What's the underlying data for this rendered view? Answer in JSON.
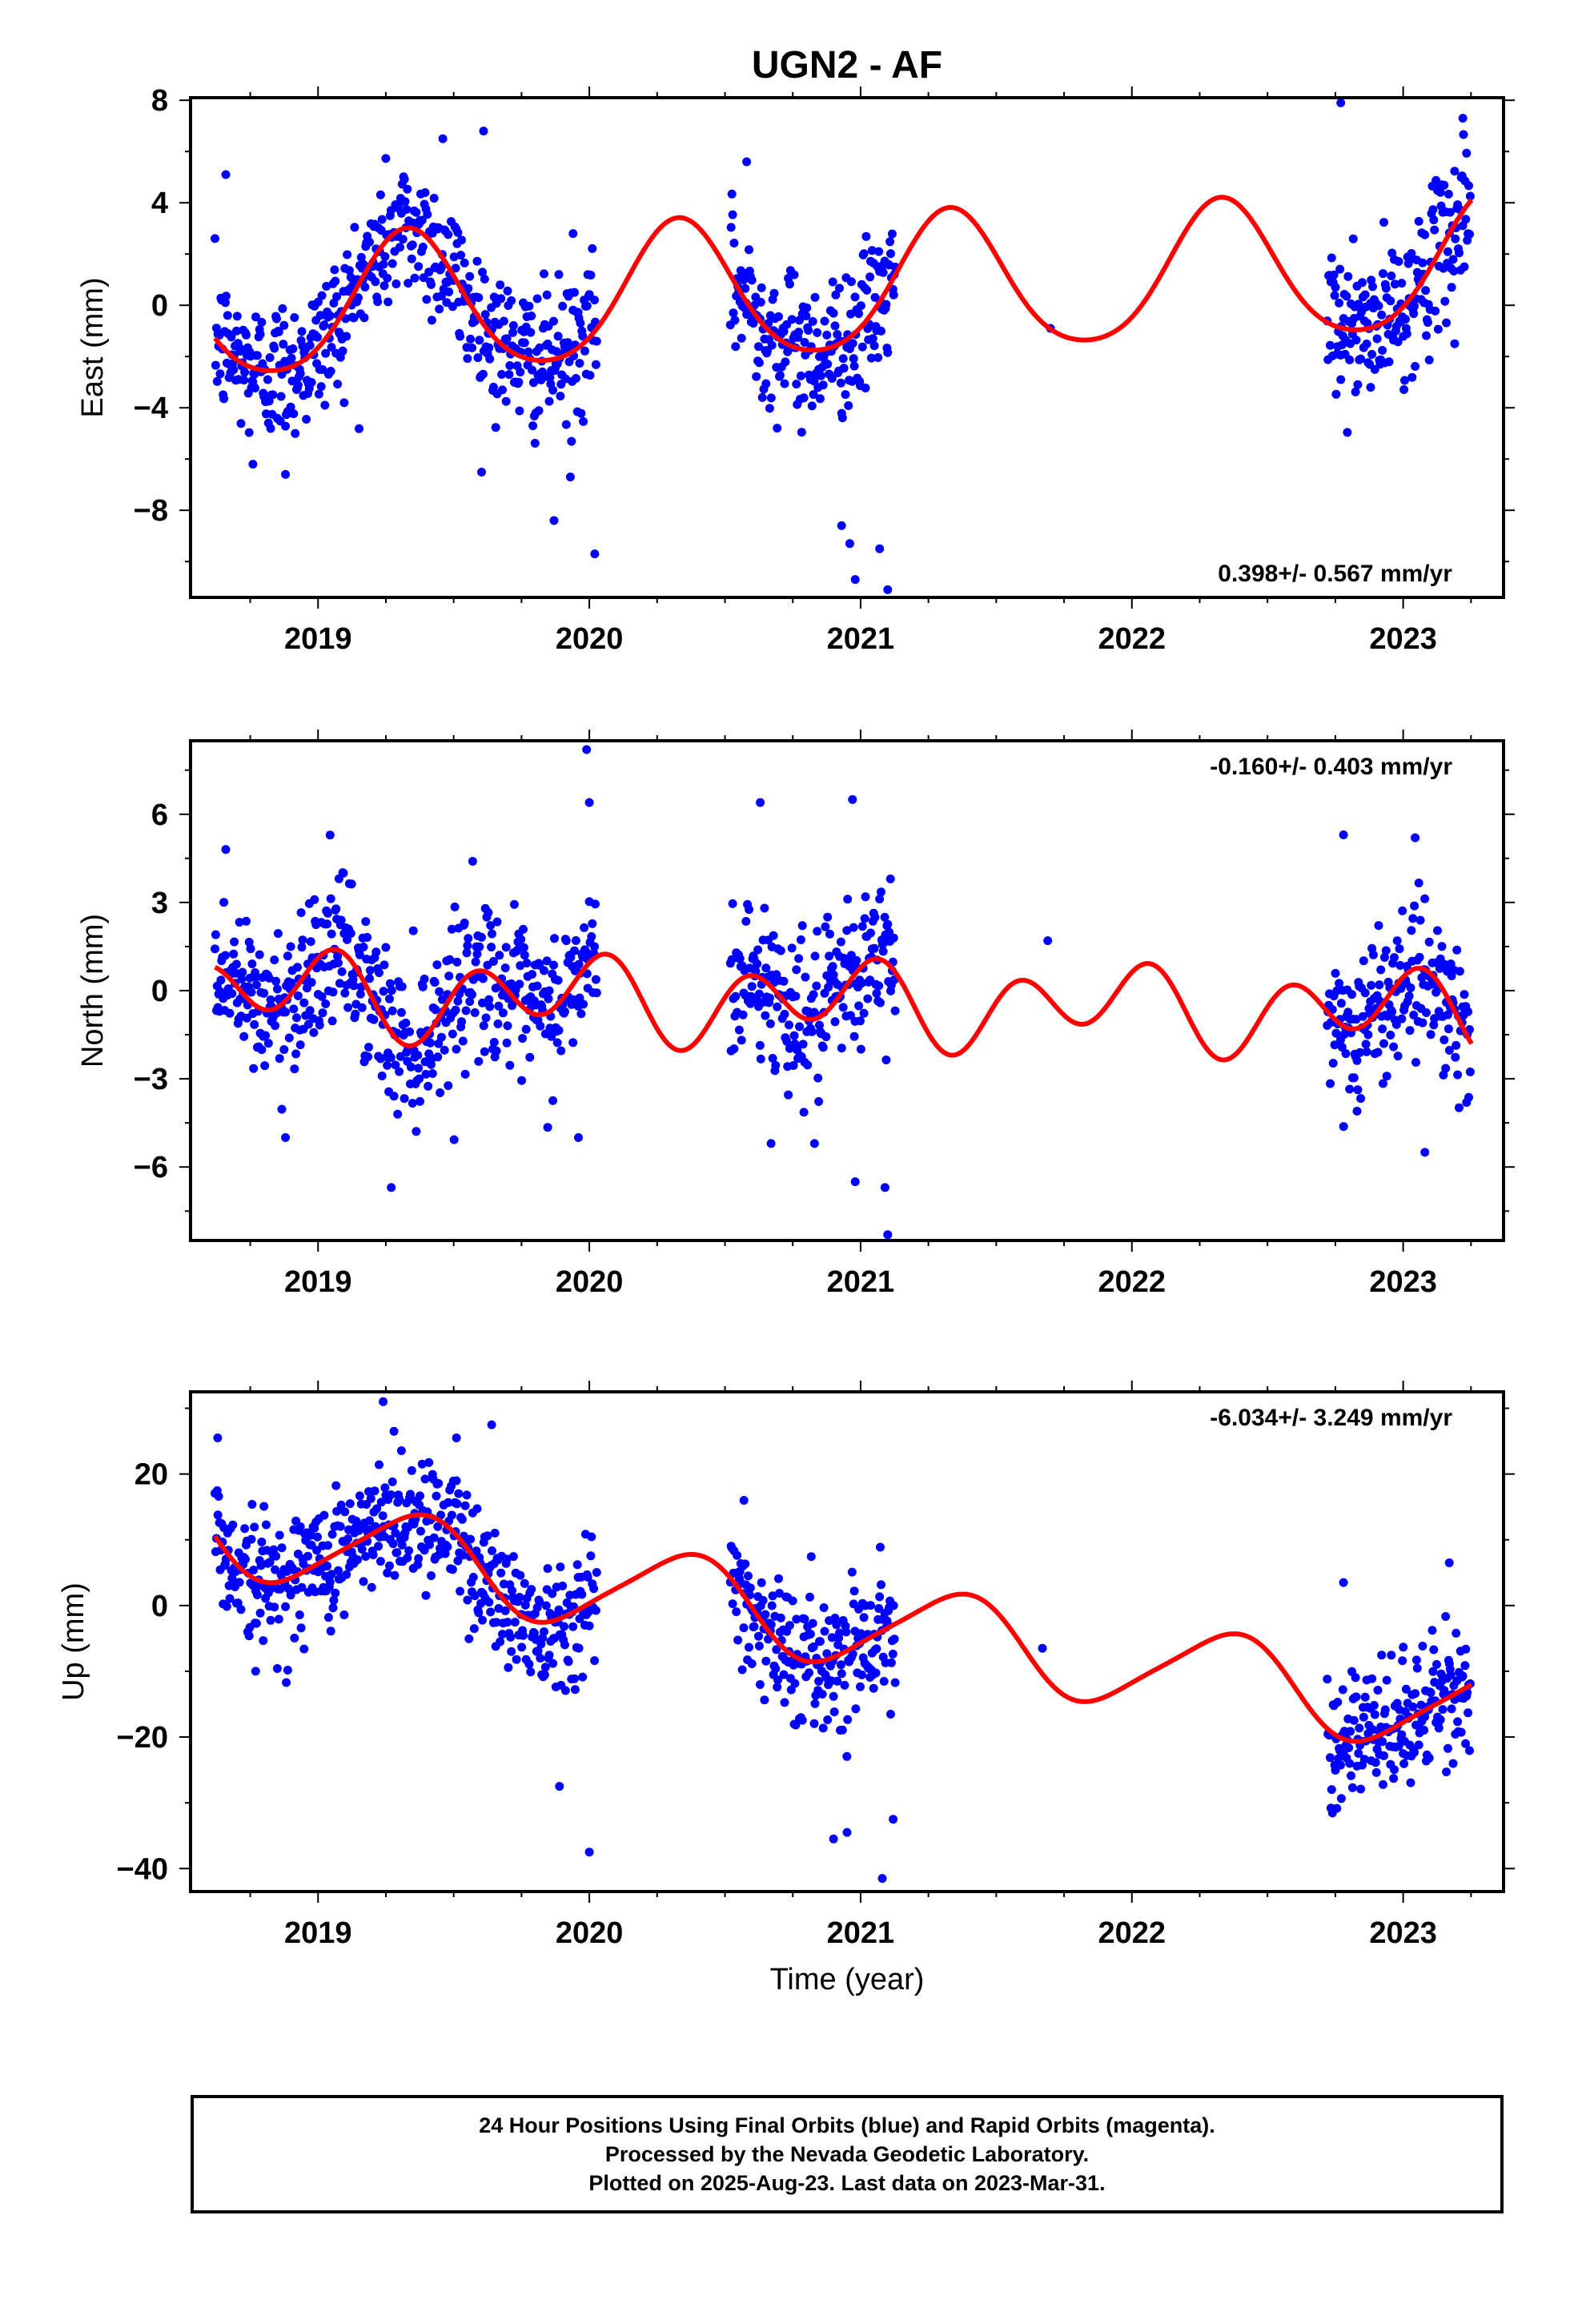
{
  "title": "UGN2 - AF",
  "xlabel": "Time (year)",
  "colors": {
    "final_orbits": "#0000ff",
    "fit": "#ff0000",
    "axes": "#000000"
  },
  "caption": {
    "line1": "24 Hour Positions Using Final Orbits (blue) and Rapid Orbits (magenta).",
    "line2": "Processed by the Nevada Geodetic Laboratory.",
    "line3": "Plotted on 2025-Aug-23. Last data on 2023-Mar-31."
  },
  "chart_data": [
    {
      "type": "scatter",
      "panel": "east",
      "ylabel": "East (mm)",
      "rate_label": "0.398+/- 0.567 mm/yr",
      "rate_label_position": "bottom-right",
      "xlim": [
        2018.53,
        2023.37
      ],
      "ylim": [
        -11.4,
        8.1
      ],
      "xticks": [
        2019,
        2020,
        2021,
        2022,
        2023
      ],
      "yticks": [
        -8,
        -4,
        0,
        4,
        8
      ],
      "grid": false,
      "data_segments": [
        {
          "start": 2018.62,
          "end": 2020.03,
          "density": 1.0
        },
        {
          "start": 2020.52,
          "end": 2021.13,
          "density": 1.0
        },
        {
          "start": 2022.72,
          "end": 2023.25,
          "density": 1.0
        }
      ],
      "model": {
        "offset": 0.6,
        "rate": 0.398,
        "t0": 2020.9,
        "harmonics": [
          {
            "freq": 1,
            "cos": -1.3,
            "sin": 2.35
          },
          {
            "freq": 2,
            "cos": -0.2,
            "sin": -0.3
          }
        ]
      },
      "scatter_sd": 1.4,
      "outliers": [
        [
          2018.66,
          5.1
        ],
        [
          2018.76,
          -6.2
        ],
        [
          2018.88,
          -6.6
        ],
        [
          2019.46,
          6.5
        ],
        [
          2019.61,
          6.8
        ],
        [
          2019.94,
          2.8
        ],
        [
          2020.02,
          -9.7
        ],
        [
          2019.87,
          -8.4
        ],
        [
          2019.93,
          -6.7
        ],
        [
          2020.58,
          5.6
        ],
        [
          2020.93,
          -8.6
        ],
        [
          2020.96,
          -9.3
        ],
        [
          2020.98,
          -10.7
        ],
        [
          2021.07,
          -9.5
        ],
        [
          2021.1,
          -11.1
        ],
        [
          2021.7,
          -0.9
        ],
        [
          2022.77,
          7.9
        ],
        [
          2022.77,
          -2.9
        ],
        [
          2022.88,
          -3.2
        ],
        [
          2023.22,
          7.3
        ],
        [
          2023.19,
          -1.5
        ]
      ],
      "series": [
        {
          "name": "Final Orbits",
          "color": "#0000ff"
        },
        {
          "name": "Fit",
          "color": "#ff0000"
        }
      ]
    },
    {
      "type": "scatter",
      "panel": "north",
      "ylabel": "North (mm)",
      "rate_label": "-0.160+/- 0.403 mm/yr",
      "rate_label_position": "top-right",
      "xlim": [
        2018.53,
        2023.37
      ],
      "ylim": [
        -8.5,
        8.5
      ],
      "xticks": [
        2019,
        2020,
        2021,
        2022,
        2023
      ],
      "yticks": [
        -6,
        -3,
        0,
        3,
        6
      ],
      "grid": false,
      "data_segments": [
        {
          "start": 2018.62,
          "end": 2020.03,
          "density": 1.0
        },
        {
          "start": 2020.52,
          "end": 2021.13,
          "density": 1.0
        },
        {
          "start": 2022.72,
          "end": 2023.25,
          "density": 1.0
        }
      ],
      "model": {
        "offset": -0.4,
        "rate": -0.16,
        "t0": 2020.9,
        "harmonics": [
          {
            "freq": 1,
            "cos": 0.55,
            "sin": -0.35
          },
          {
            "freq": 2,
            "cos": 0.65,
            "sin": 0.95
          }
        ]
      },
      "scatter_sd": 1.3,
      "outliers": [
        [
          2018.66,
          4.8
        ],
        [
          2019.99,
          8.2
        ],
        [
          2020.0,
          6.4
        ],
        [
          2019.27,
          -6.7
        ],
        [
          2019.96,
          -5.0
        ],
        [
          2018.88,
          -5.0
        ],
        [
          2020.63,
          6.4
        ],
        [
          2020.97,
          6.5
        ],
        [
          2020.67,
          -5.2
        ],
        [
          2020.83,
          -5.2
        ],
        [
          2020.98,
          -6.5
        ],
        [
          2021.1,
          -8.3
        ],
        [
          2021.09,
          -6.7
        ],
        [
          2021.11,
          3.8
        ],
        [
          2021.69,
          1.7
        ],
        [
          2022.78,
          5.3
        ],
        [
          2022.83,
          -4.1
        ],
        [
          2023.08,
          -5.5
        ]
      ],
      "series": [
        {
          "name": "Final Orbits",
          "color": "#0000ff"
        },
        {
          "name": "Fit",
          "color": "#ff0000"
        }
      ]
    },
    {
      "type": "scatter",
      "panel": "up",
      "ylabel": "Up (mm)",
      "rate_label": "-6.034+/- 3.249 mm/yr",
      "rate_label_position": "top-right",
      "xlim": [
        2018.53,
        2023.37
      ],
      "ylim": [
        -43.5,
        32.5
      ],
      "xticks": [
        2019,
        2020,
        2021,
        2022,
        2023
      ],
      "yticks": [
        -40,
        -20,
        0,
        20
      ],
      "grid": false,
      "data_segments": [
        {
          "start": 2018.62,
          "end": 2020.03,
          "density": 1.0
        },
        {
          "start": 2020.52,
          "end": 2021.13,
          "density": 1.0
        },
        {
          "start": 2022.72,
          "end": 2023.25,
          "density": 1.0
        }
      ],
      "model": {
        "offset": -2.2,
        "rate": -6.034,
        "t0": 2020.9,
        "harmonics": [
          {
            "freq": 1,
            "cos": -3.9,
            "sin": 5.3
          },
          {
            "freq": 2,
            "cos": 1.0,
            "sin": -0.3
          }
        ]
      },
      "scatter_sd": 5.0,
      "outliers": [
        [
          2018.63,
          25.5
        ],
        [
          2019.24,
          31.0
        ],
        [
          2019.28,
          26.5
        ],
        [
          2019.51,
          25.5
        ],
        [
          2019.64,
          27.5
        ],
        [
          2018.77,
          -10.0
        ],
        [
          2019.89,
          -27.5
        ],
        [
          2020.0,
          -37.5
        ],
        [
          2020.57,
          16.0
        ],
        [
          2020.9,
          -35.5
        ],
        [
          2020.95,
          -34.5
        ],
        [
          2021.08,
          -41.5
        ],
        [
          2021.12,
          -32.5
        ],
        [
          2021.67,
          -6.5
        ],
        [
          2022.78,
          3.5
        ],
        [
          2023.0,
          -22.5
        ],
        [
          2023.23,
          -21.0
        ],
        [
          2023.17,
          6.5
        ]
      ],
      "series": [
        {
          "name": "Final Orbits",
          "color": "#0000ff"
        },
        {
          "name": "Fit",
          "color": "#ff0000"
        }
      ]
    }
  ]
}
